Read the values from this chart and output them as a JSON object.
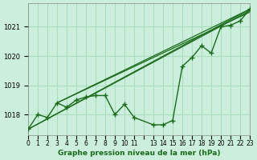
{
  "title": "Graphe pression niveau de la mer (hPa)",
  "bg_color": "#cceedd",
  "grid_color": "#aaddbb",
  "line_color": "#1a6b1a",
  "xlim": [
    0,
    23
  ],
  "ylim": [
    1017.3,
    1021.8
  ],
  "yticks": [
    1018,
    1019,
    1020,
    1021
  ],
  "xtick_positions": [
    0,
    1,
    2,
    3,
    4,
    5,
    6,
    7,
    8,
    9,
    10,
    11,
    12,
    13,
    14,
    15,
    16,
    17,
    18,
    19,
    20,
    21,
    22,
    23
  ],
  "xtick_labels": [
    "0",
    "1",
    "2",
    "3",
    "4",
    "5",
    "6",
    "7",
    "8",
    "9",
    "10",
    "11",
    "",
    "13",
    "14",
    "15",
    "16",
    "17",
    "18",
    "19",
    "20",
    "21",
    "22",
    "23"
  ],
  "series_x": [
    0,
    1,
    2,
    3,
    4,
    5,
    6,
    7,
    8,
    9,
    10,
    11,
    13,
    14,
    15,
    16,
    17,
    18,
    19,
    20,
    21,
    22,
    23
  ],
  "series_y": [
    1017.5,
    1018.0,
    1017.9,
    1018.4,
    1018.25,
    1018.5,
    1018.6,
    1018.65,
    1018.65,
    1018.0,
    1018.35,
    1017.9,
    1017.65,
    1017.65,
    1017.8,
    1019.65,
    1019.95,
    1020.35,
    1020.1,
    1021.0,
    1021.05,
    1021.2,
    1021.6
  ],
  "extra_lines": [
    {
      "x": [
        0,
        23
      ],
      "y": [
        1017.5,
        1021.6
      ]
    },
    {
      "x": [
        0,
        23
      ],
      "y": [
        1017.5,
        1021.55
      ]
    },
    {
      "x": [
        3,
        23
      ],
      "y": [
        1018.4,
        1021.6
      ]
    },
    {
      "x": [
        3,
        23
      ],
      "y": [
        1018.4,
        1021.5
      ]
    }
  ]
}
